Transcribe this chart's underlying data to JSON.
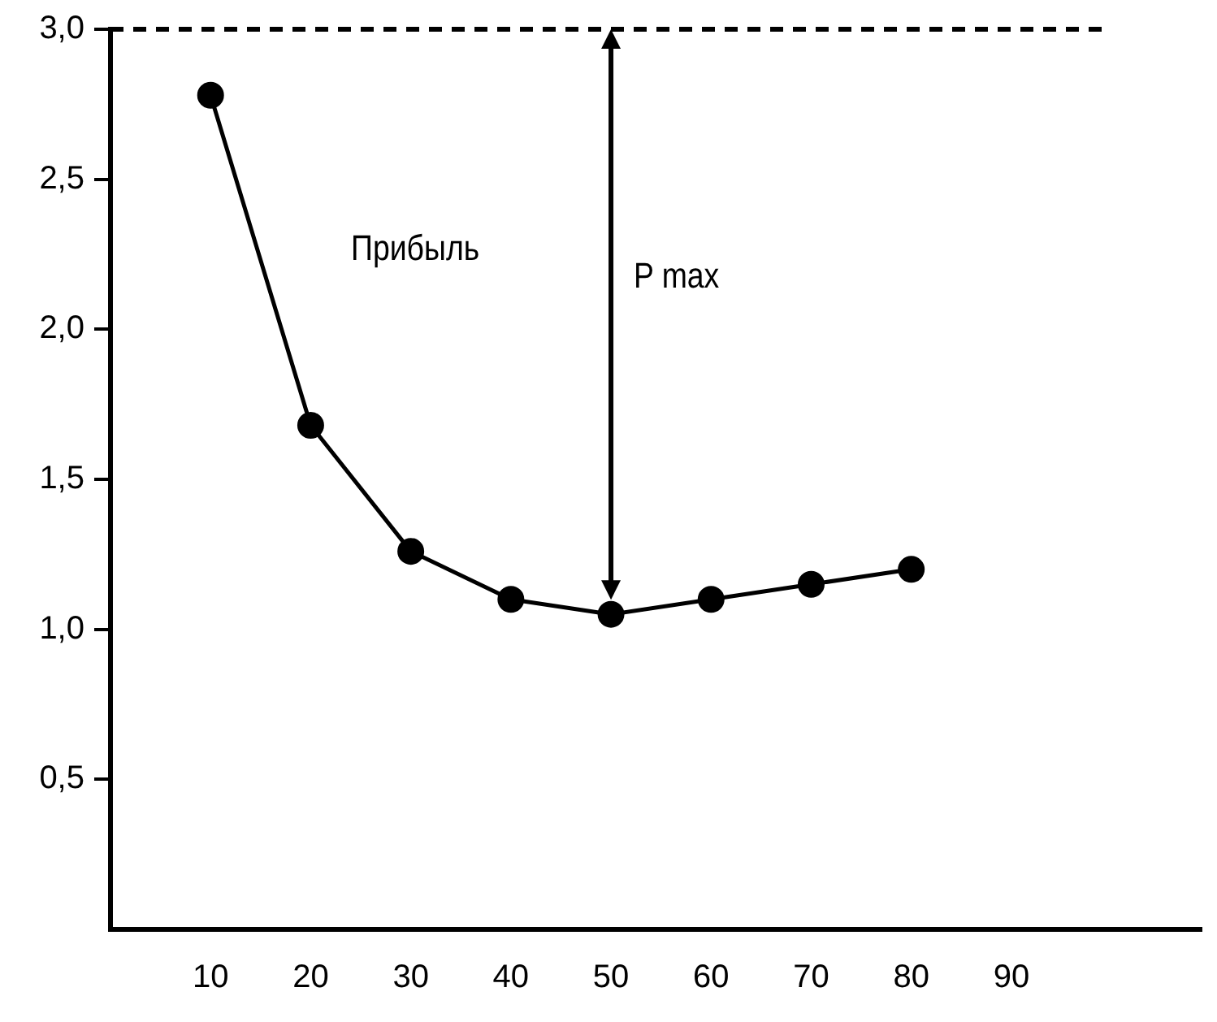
{
  "chart_data": {
    "type": "line",
    "x": [
      10,
      20,
      30,
      40,
      50,
      60,
      70,
      80
    ],
    "values": [
      2.78,
      1.68,
      1.26,
      1.1,
      1.05,
      1.1,
      1.15,
      1.2
    ],
    "color": "#000000",
    "marker": "circle",
    "line_style": "solid",
    "xlim": [
      0,
      109
    ],
    "xticks": [
      10,
      20,
      30,
      40,
      50,
      60,
      70,
      80,
      90
    ],
    "ylim": [
      0,
      3.0
    ],
    "yticks": [
      {
        "value": 0.5,
        "label": "0,5"
      },
      {
        "value": 1.0,
        "label": "1,0"
      },
      {
        "value": 1.5,
        "label": "1,5"
      },
      {
        "value": 2.0,
        "label": "2,0"
      },
      {
        "value": 2.5,
        "label": "2,5"
      },
      {
        "value": 3.0,
        "label": "3,0"
      }
    ],
    "ref_lines": [
      {
        "axis": "y",
        "value": 3.0,
        "line_style": "dashed",
        "color": "#000000"
      }
    ],
    "annotations": [
      "Прибыль",
      "P max"
    ],
    "grid": false,
    "legend": false
  }
}
